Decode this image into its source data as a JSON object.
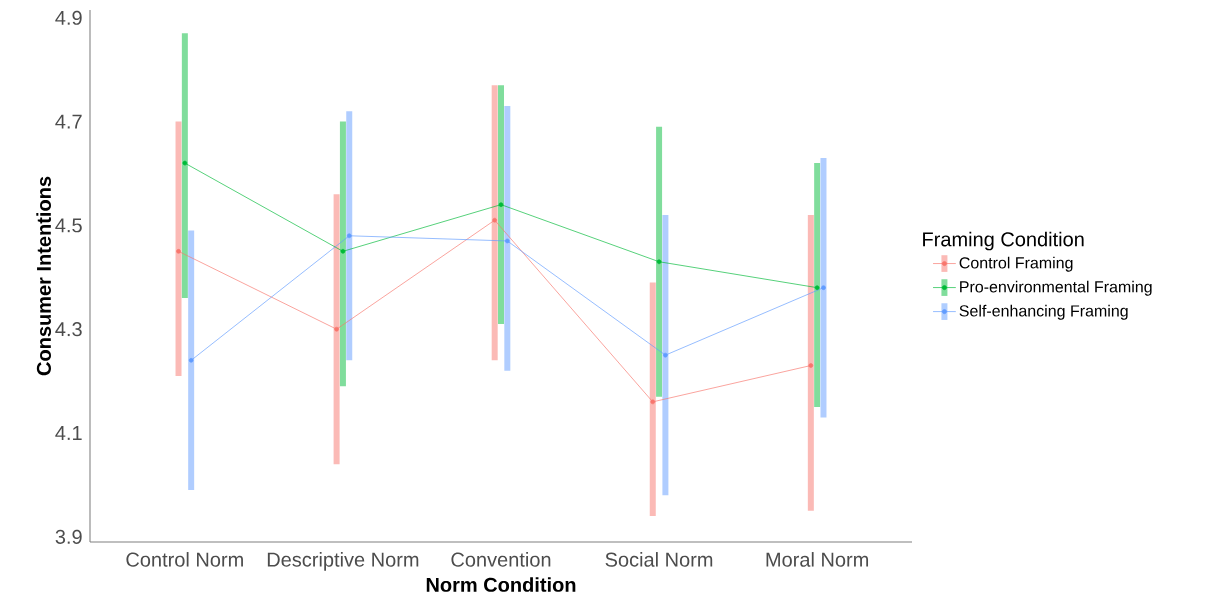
{
  "chart_data": {
    "type": "line",
    "xlabel": "Norm Condition",
    "ylabel": "Consumer Intentions",
    "legend_title": "Framing Condition",
    "categories": [
      "Control Norm",
      "Descriptive Norm",
      "Convention",
      "Social Norm",
      "Moral Norm"
    ],
    "series": [
      {
        "name": "Control Framing",
        "color": "#f8766d",
        "values": [
          4.45,
          4.3,
          4.51,
          4.16,
          4.23
        ],
        "errors": [
          [
            4.21,
            4.7
          ],
          [
            4.04,
            4.56
          ],
          [
            4.24,
            4.77
          ],
          [
            3.94,
            4.39
          ],
          [
            3.95,
            4.52
          ]
        ]
      },
      {
        "name": "Pro-environmental Framing",
        "color": "#00ba38",
        "values": [
          4.62,
          4.45,
          4.54,
          4.43,
          4.38
        ],
        "errors": [
          [
            4.36,
            4.87
          ],
          [
            4.19,
            4.7
          ],
          [
            4.31,
            4.77
          ],
          [
            4.17,
            4.69
          ],
          [
            4.15,
            4.62
          ]
        ]
      },
      {
        "name": "Self-enhancing Framing",
        "color": "#619cff",
        "values": [
          4.24,
          4.48,
          4.47,
          4.25,
          4.38
        ],
        "errors": [
          [
            3.99,
            4.49
          ],
          [
            4.24,
            4.72
          ],
          [
            4.22,
            4.73
          ],
          [
            3.98,
            4.52
          ],
          [
            4.13,
            4.63
          ]
        ]
      }
    ],
    "ylim": [
      3.89,
      4.915
    ],
    "yticks": [
      3.9,
      4.1,
      4.3,
      4.5,
      4.7,
      4.9
    ],
    "legend": "right",
    "marker": "circle",
    "line_style": "solid"
  }
}
